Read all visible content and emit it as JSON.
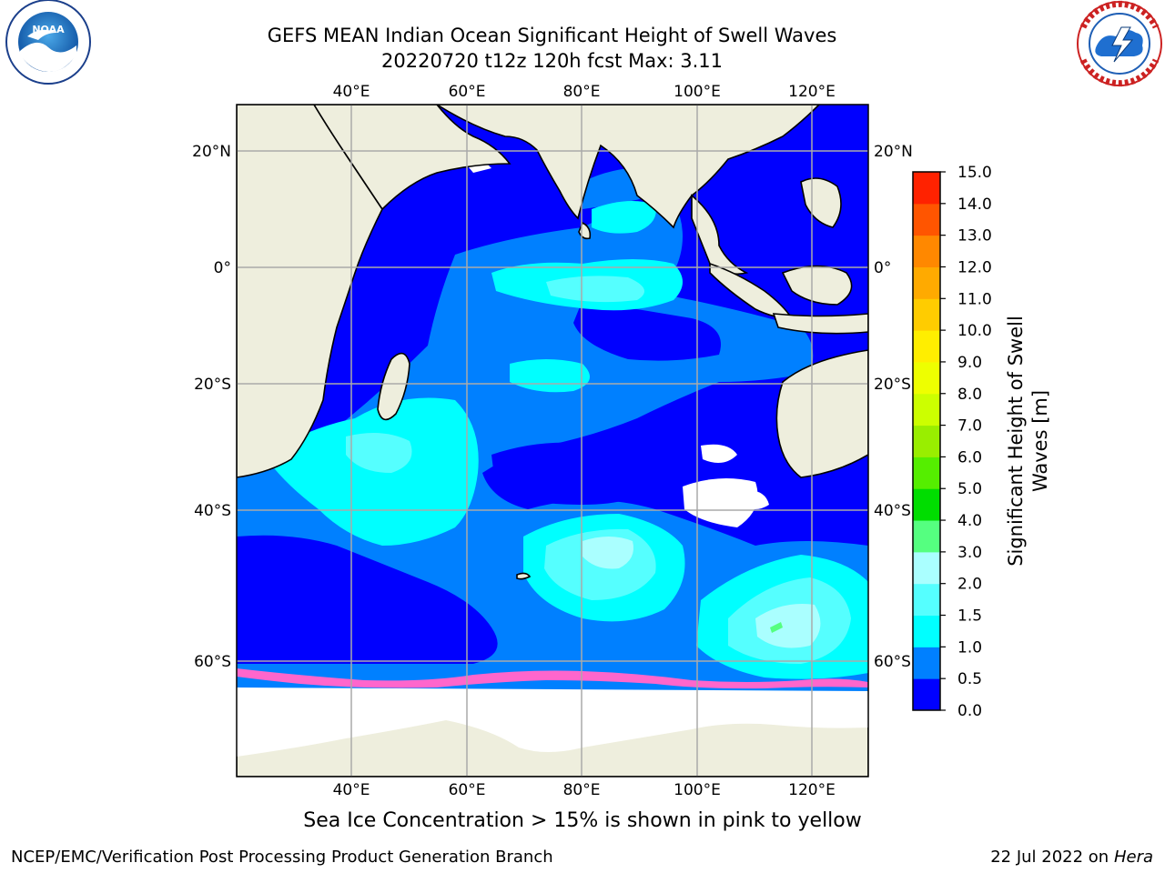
{
  "header": {
    "title_line1": "GEFS MEAN Indian Ocean Significant Height of Swell Waves",
    "title_line2": "20220720 t12z 120h fcst   Max: 3.11"
  },
  "logos": {
    "left": {
      "icon": "noaa-logo",
      "text": "NOAA",
      "ring_text": "NATIONAL OCEANIC AND ATMOSPHERIC ADMINISTRATION · U.S. DEPARTMENT OF COMMERCE"
    },
    "right": {
      "icon": "national-weather-service-logo",
      "ring_text": "NATIONAL WEATHER SERVICE"
    }
  },
  "map": {
    "lon_ticks": [
      "40°E",
      "60°E",
      "80°E",
      "100°E",
      "120°E"
    ],
    "lat_ticks_left": [
      "20°N",
      "0°",
      "20°S",
      "40°S",
      "60°S"
    ],
    "lat_ticks_right": [
      "20°N",
      "0°",
      "20°S",
      "40°S",
      "60°S"
    ],
    "ocean_colors": {
      "deep_blue": "#0000ff",
      "blue": "#0080ff",
      "cyan": "#00ffff",
      "light_cyan": "#55ffff",
      "pale_cyan": "#a8ffff",
      "land": "#eeeedd",
      "sea_ice_pink": "#ff66cc",
      "sea_ice_yellow": "#ffcc44"
    }
  },
  "colorbar": {
    "label_line1": "Significant Height of Swell",
    "label_line2": "Waves [m]",
    "ticks": [
      "0.0",
      "0.5",
      "1.0",
      "1.5",
      "2.0",
      "3.0",
      "4.0",
      "5.0",
      "6.0",
      "7.0",
      "8.0",
      "9.0",
      "10.0",
      "11.0",
      "12.0",
      "13.0",
      "14.0",
      "15.0"
    ],
    "colors": [
      "#0000ff",
      "#0080ff",
      "#00ffff",
      "#55ffff",
      "#aaffff",
      "#55ff80",
      "#00dd00",
      "#55ee00",
      "#99ee00",
      "#ccff00",
      "#eeff00",
      "#ffee00",
      "#ffcc00",
      "#ffaa00",
      "#ff8800",
      "#ff5500",
      "#ff2200"
    ]
  },
  "footer": {
    "note": "Sea Ice Concentration > 15% is shown in pink to yellow",
    "left": "NCEP/EMC/Verification Post Processing Product Generation Branch",
    "right_prefix": "22 Jul 2022 on ",
    "right_host": "Hera"
  }
}
